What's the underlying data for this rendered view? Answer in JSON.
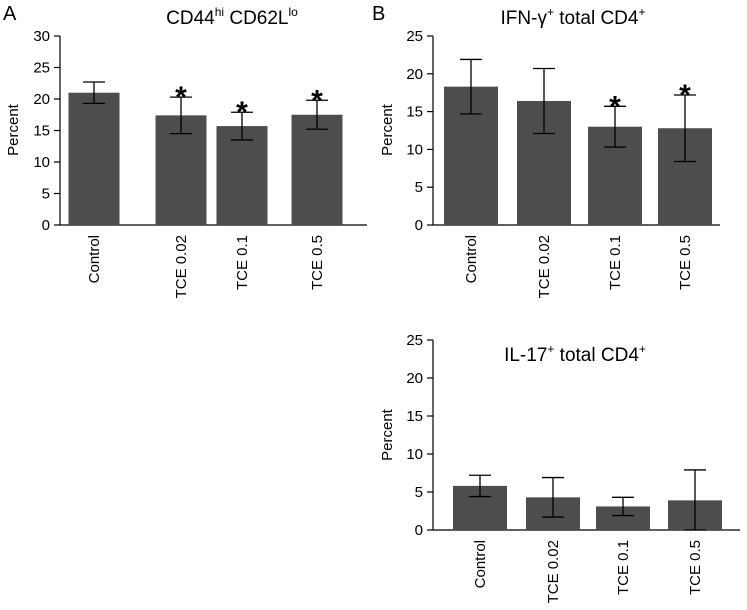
{
  "colors": {
    "bar": "#4d4d4d",
    "axis": "#000000",
    "background": "#ffffff"
  },
  "chart_data": [
    {
      "id": "A",
      "panel_label": "A",
      "type": "bar",
      "title": {
        "main": "CD44",
        "sup1": "hi",
        "mid": " CD62L",
        "sup2": "lo"
      },
      "ylabel": "Percent",
      "xlabel": "",
      "ylim": [
        0,
        30
      ],
      "yticks": [
        0,
        5,
        10,
        15,
        20,
        25,
        30
      ],
      "categories": [
        "Control",
        "TCE 0.02",
        "TCE 0.1",
        "TCE 0.5"
      ],
      "values": [
        21.0,
        17.4,
        15.7,
        17.5
      ],
      "errors": [
        1.7,
        2.9,
        2.2,
        2.3
      ],
      "significant": [
        "",
        "*",
        "*",
        "*"
      ]
    },
    {
      "id": "B1",
      "panel_label": "B",
      "type": "bar",
      "title": {
        "main": "IFN-γ",
        "sup1": "+",
        "mid": "  total CD4",
        "sup2": "+"
      },
      "ylabel": "Percent",
      "xlabel": "",
      "ylim": [
        0,
        25
      ],
      "yticks": [
        0,
        5,
        10,
        15,
        20,
        25
      ],
      "categories": [
        "Control",
        "TCE 0.02",
        "TCE 0.1",
        "TCE 0.5"
      ],
      "values": [
        18.3,
        16.4,
        13.0,
        12.8
      ],
      "errors": [
        3.6,
        4.3,
        2.7,
        4.4
      ],
      "significant": [
        "",
        "",
        "*",
        "*"
      ]
    },
    {
      "id": "B2",
      "panel_label": "",
      "type": "bar",
      "title": {
        "main": "IL-17",
        "sup1": "+",
        "mid": "  total CD4",
        "sup2": "+"
      },
      "ylabel": "Percent",
      "xlabel": "",
      "ylim": [
        0,
        25
      ],
      "yticks": [
        0,
        5,
        10,
        15,
        20,
        25
      ],
      "categories": [
        "Control",
        "TCE 0.02",
        "TCE 0.1",
        "TCE 0.5"
      ],
      "values": [
        5.8,
        4.3,
        3.1,
        3.9
      ],
      "errors": [
        1.4,
        2.6,
        1.2,
        4.0
      ],
      "significant": [
        "",
        "",
        "",
        ""
      ]
    }
  ]
}
